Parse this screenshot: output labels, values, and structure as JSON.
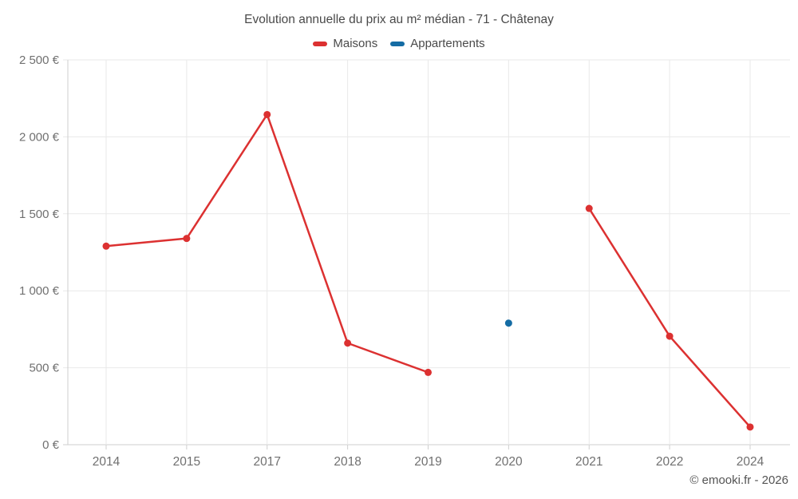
{
  "title": "Evolution annuelle du prix au m² médian - 71 - Châtenay",
  "footer": "© emooki.fr - 2026",
  "colors": {
    "maisons": "#dc3131",
    "appartements": "#156ca4",
    "grid": "#e9e9e9",
    "axis": "#cfcfcf",
    "tick_label": "#707070",
    "title_text": "#4a4a4a"
  },
  "chart_data": {
    "type": "line",
    "title": "Evolution annuelle du prix au m² médian - 71 - Châtenay",
    "categories": [
      "2014",
      "2015",
      "2017",
      "2018",
      "2019",
      "2020",
      "2021",
      "2022",
      "2024"
    ],
    "series": [
      {
        "name": "Maisons",
        "color": "#dc3131",
        "values": [
          1290,
          1340,
          2145,
          660,
          470,
          null,
          1535,
          705,
          115
        ]
      },
      {
        "name": "Appartements",
        "color": "#156ca4",
        "values": [
          null,
          null,
          null,
          null,
          null,
          790,
          null,
          null,
          null
        ]
      }
    ],
    "xlabel": "",
    "ylabel": "",
    "ylim": [
      0,
      2500
    ],
    "yticks": [
      0,
      500,
      1000,
      1500,
      2000,
      2500
    ],
    "ytick_labels": [
      "0 €",
      "500 €",
      "1 000 €",
      "1 500 €",
      "2 000 €",
      "2 500 €"
    ],
    "grid": true,
    "legend_position": "top",
    "marker": "circle",
    "gap_at_null": true
  }
}
